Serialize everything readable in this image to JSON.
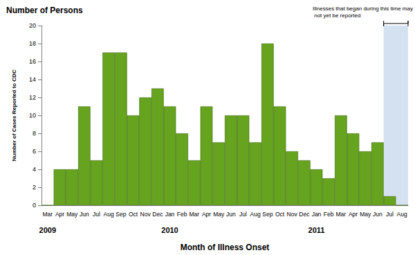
{
  "chart_data": {
    "type": "bar",
    "title": "Number of Persons",
    "x_label": "Month of Illness Onset",
    "y_label": "Number of Cases Reported to CDC",
    "categories": [
      "Mar",
      "Apr",
      "May",
      "Jun",
      "Jul",
      "Aug",
      "Sep",
      "Oct",
      "Nov",
      "Dec",
      "Jan",
      "Feb",
      "Mar",
      "Apr",
      "May",
      "Jun",
      "Jul",
      "Aug",
      "Sep",
      "Oct",
      "Nov",
      "Dec",
      "Jan",
      "Feb",
      "Mar",
      "Apr",
      "May",
      "Jun",
      "Jul",
      "Aug"
    ],
    "years": [
      "2009",
      null,
      null,
      null,
      null,
      null,
      null,
      null,
      null,
      null,
      "2010",
      null,
      null,
      null,
      null,
      null,
      null,
      null,
      null,
      null,
      null,
      null,
      "2011",
      null,
      null,
      null,
      null,
      null,
      null,
      null
    ],
    "values": [
      0,
      4,
      4,
      11,
      5,
      17,
      17,
      10,
      12,
      13,
      11,
      8,
      5,
      11,
      7,
      10,
      10,
      7,
      18,
      11,
      6,
      5,
      4,
      3,
      10,
      8,
      6,
      7,
      1,
      0
    ],
    "color": "#66a31e",
    "ylim": [
      0,
      20
    ],
    "yticks": [
      0,
      2,
      4,
      6,
      8,
      10,
      12,
      14,
      16,
      18,
      20
    ],
    "grid": false,
    "annotation": {
      "text": "Illnesses that began during this time may not yet be reported",
      "may_not_be_reported": [
        false,
        false,
        false,
        false,
        false,
        false,
        false,
        false,
        false,
        false,
        false,
        false,
        false,
        false,
        false,
        false,
        false,
        false,
        false,
        false,
        false,
        false,
        false,
        false,
        false,
        false,
        false,
        false,
        true,
        true
      ]
    }
  }
}
